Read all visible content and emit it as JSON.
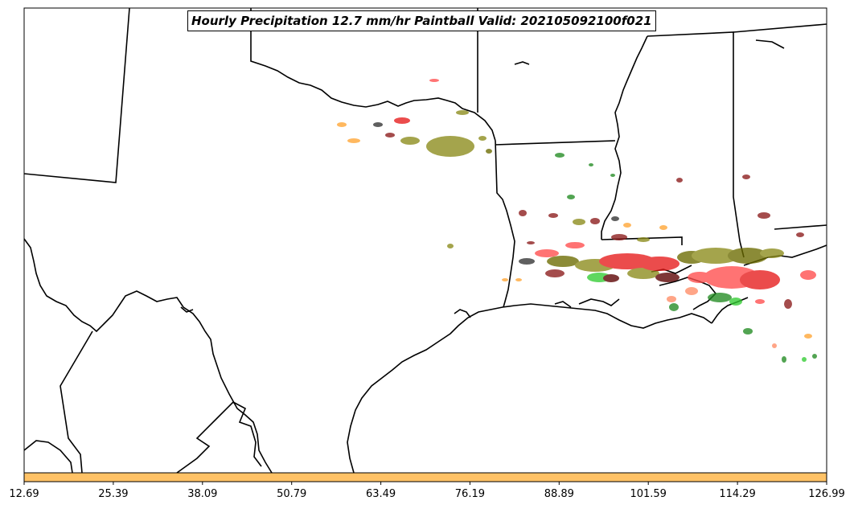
{
  "title": "Hourly Precipitation 12.7 mm/hr Paintball Valid: 202105092100f021",
  "colorbar": {
    "color": "#ffc266",
    "ticks": [
      "12.69",
      "25.39",
      "38.09",
      "50.79",
      "63.49",
      "76.19",
      "88.89",
      "101.59",
      "114.29",
      "126.99"
    ]
  },
  "paint_colors": [
    "#ff4d4d",
    "#e61a1a",
    "#8b8b1a",
    "#6b6b00",
    "#228b22",
    "#33cc33",
    "#ffa533",
    "#8b1a1a",
    "#5a0000",
    "#333333",
    "#ff8c66"
  ],
  "icons": {
    "map": "state-boundary-map"
  }
}
